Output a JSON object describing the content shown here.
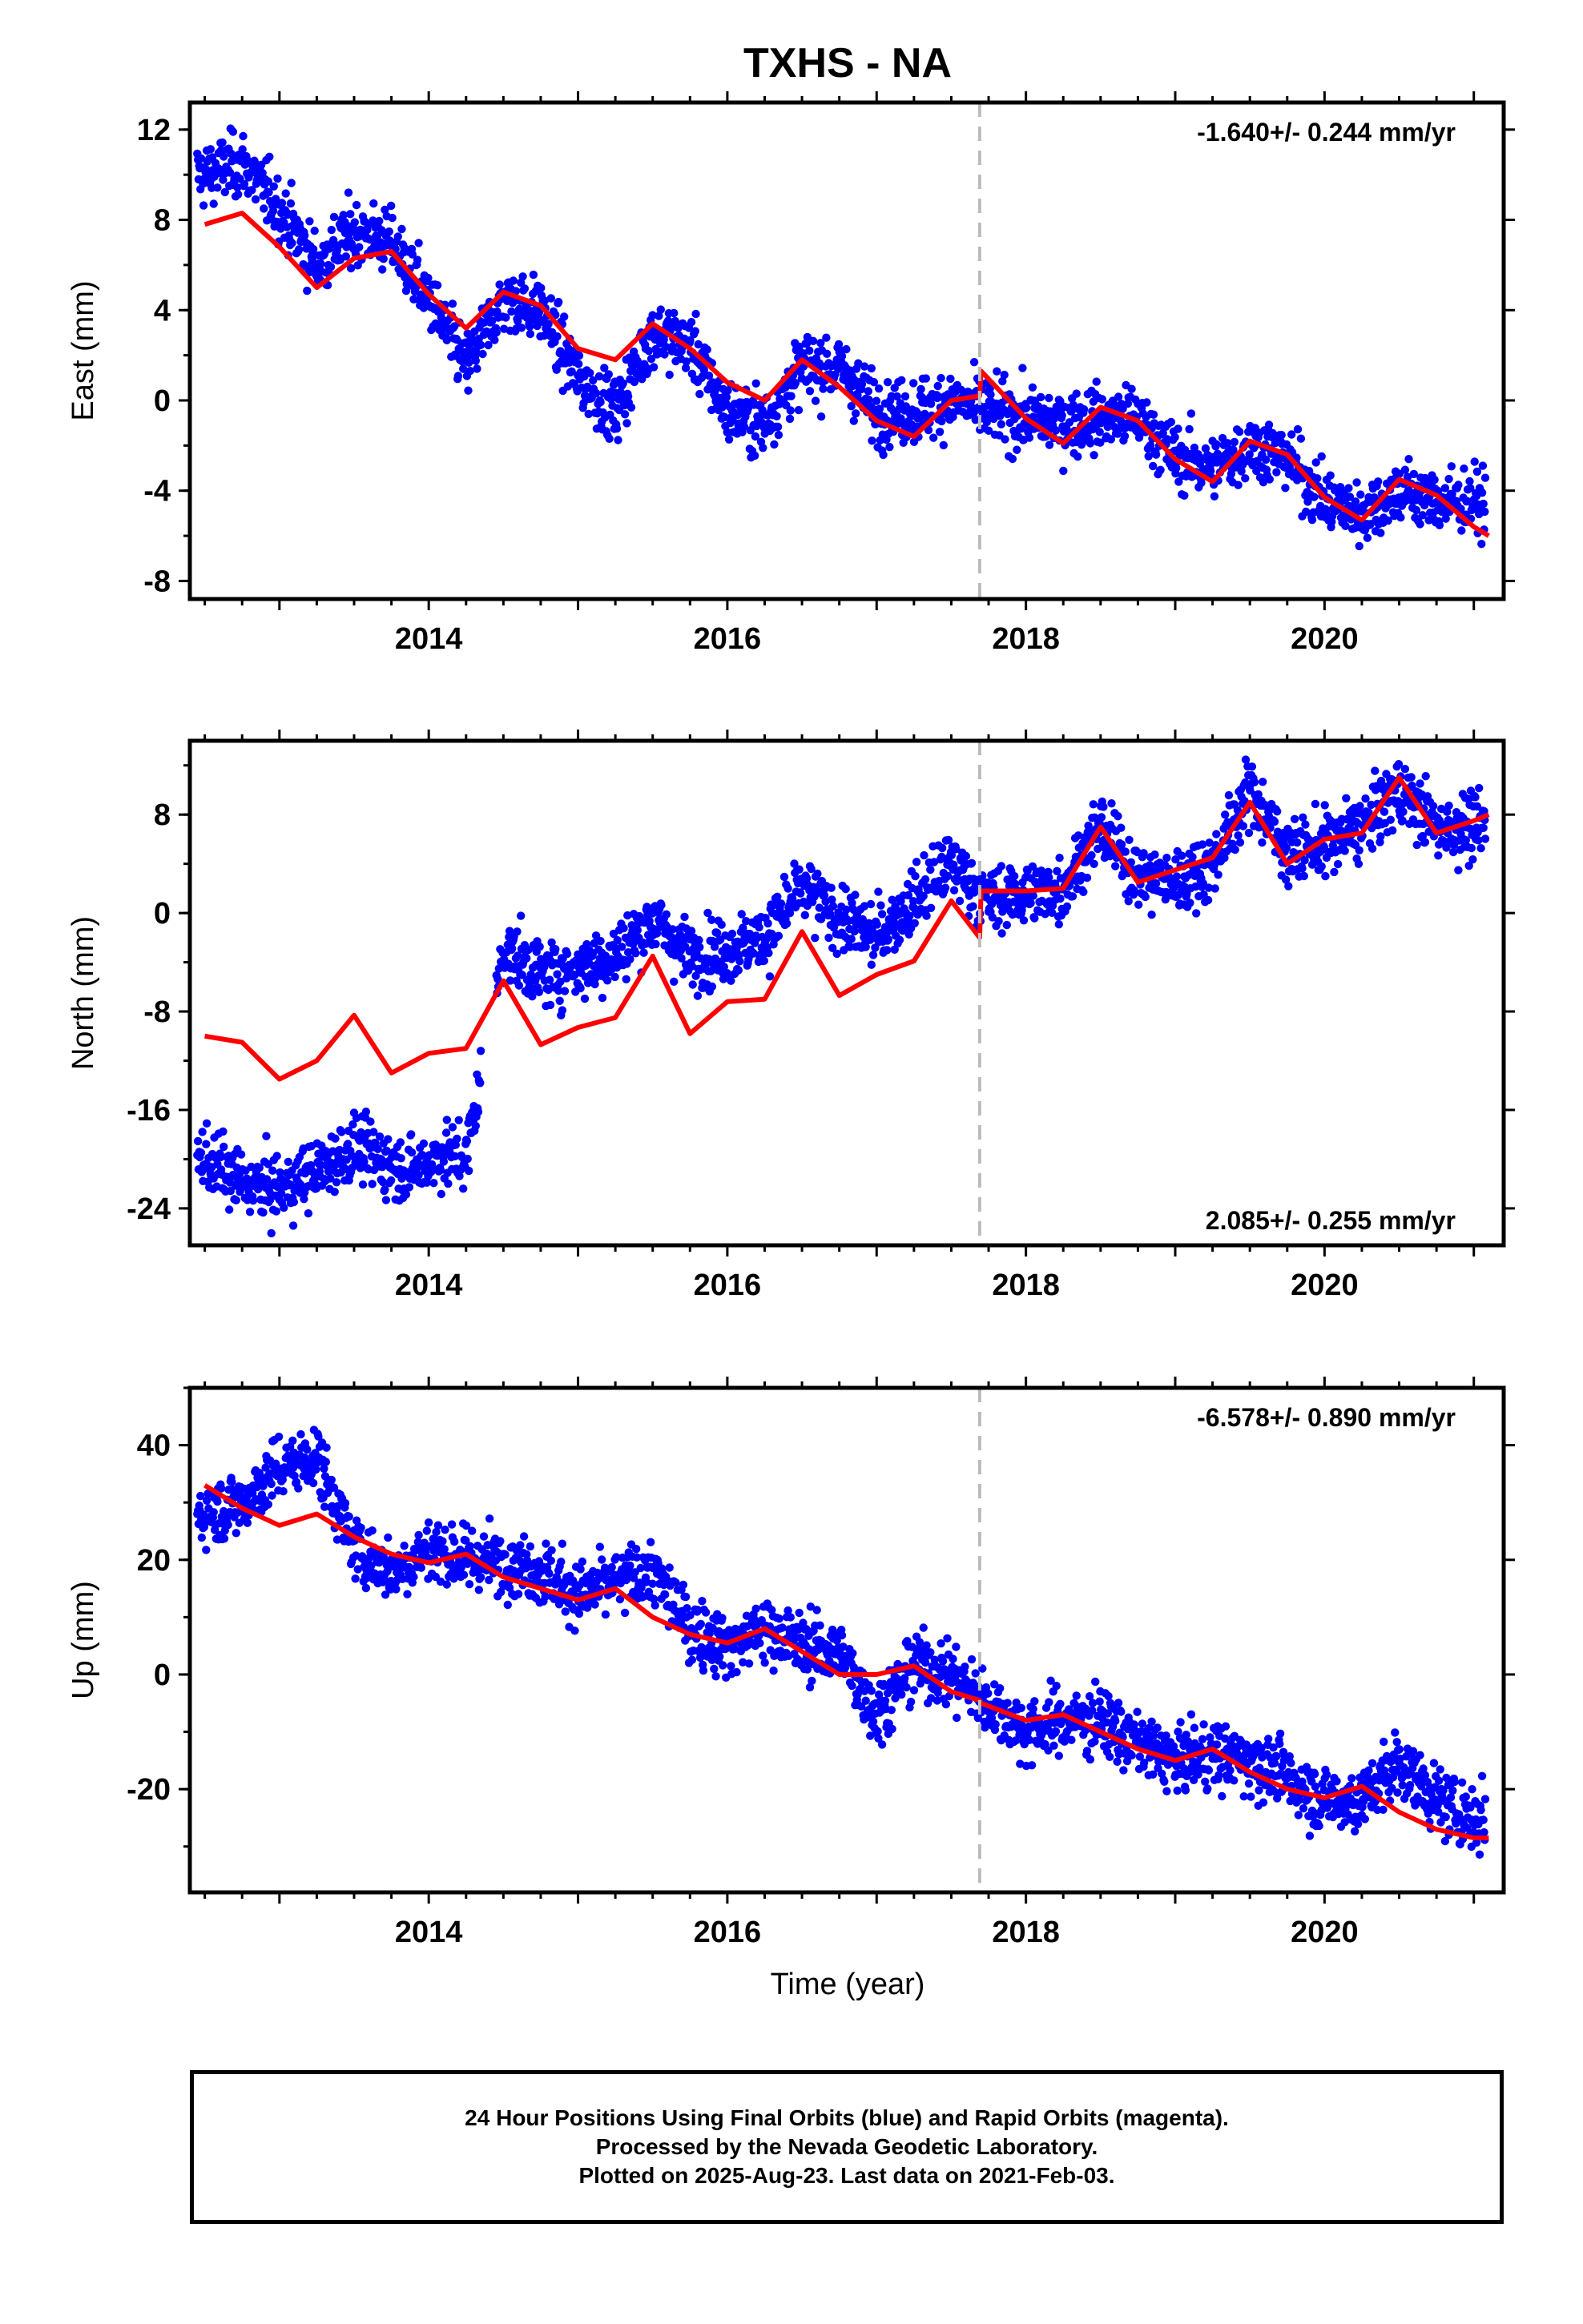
{
  "title": "TXHS - NA",
  "xlabel": "Time (year)",
  "colors": {
    "data": "#0000ff",
    "model": "#ff0000",
    "offset": "#bbbbbb",
    "frame": "#000000"
  },
  "footer": {
    "line1": "24 Hour Positions Using Final Orbits (blue) and Rapid Orbits (magenta).",
    "line2": "Processed by the Nevada Geodetic Laboratory.",
    "line3": "Plotted on 2025-Aug-23. Last data on 2021-Feb-03."
  },
  "chart_data": [
    {
      "type": "scatter",
      "component": "east",
      "title": "TXHS - NA",
      "xlabel": "",
      "ylabel": "East (mm)",
      "velocity_label": "-1.640+/- 0.244 mm/yr",
      "xlim": [
        2012.4,
        2021.2
      ],
      "ylim": [
        -8.8,
        13.2
      ],
      "xticks": [
        2014,
        2016,
        2018,
        2020
      ],
      "yticks": [
        -8,
        -4,
        0,
        4,
        8,
        12
      ],
      "offset_epoch": 2017.69,
      "series": [
        {
          "name": "Final Orbits",
          "color": "#0000ff",
          "x": [
            2012.5,
            2012.75,
            2013.0,
            2013.25,
            2013.5,
            2013.75,
            2014.0,
            2014.25,
            2014.5,
            2014.75,
            2015.0,
            2015.25,
            2015.5,
            2015.75,
            2016.0,
            2016.25,
            2016.5,
            2016.75,
            2017.0,
            2017.25,
            2017.5,
            2017.75,
            2018.0,
            2018.25,
            2018.5,
            2018.75,
            2019.0,
            2019.25,
            2019.5,
            2019.75,
            2020.0,
            2020.25,
            2020.5,
            2020.75,
            2021.0
          ],
          "y": [
            10,
            10.5,
            8.5,
            6,
            7.5,
            7,
            4.5,
            1.5,
            4.5,
            4,
            1,
            -0.5,
            3,
            2.5,
            -0.5,
            -1,
            1.5,
            1.5,
            -0.5,
            -0.5,
            0,
            -0.5,
            -0.8,
            -1,
            -0.8,
            -0.8,
            -2.5,
            -3,
            -2,
            -2.5,
            -4.5,
            -5,
            -4,
            -4.5,
            -4.5
          ]
        },
        {
          "name": "Model",
          "color": "#ff0000",
          "x": [
            2012.5,
            2012.75,
            2013.0,
            2013.25,
            2013.5,
            2013.75,
            2014.0,
            2014.25,
            2014.5,
            2014.75,
            2015.0,
            2015.25,
            2015.5,
            2015.75,
            2016.0,
            2016.25,
            2016.5,
            2016.75,
            2017.0,
            2017.25,
            2017.5,
            2017.69,
            2017.7,
            2018.0,
            2018.25,
            2018.5,
            2018.75,
            2019.0,
            2019.25,
            2019.5,
            2019.75,
            2020.0,
            2020.25,
            2020.5,
            2020.75,
            2021.0,
            2021.1
          ],
          "y": [
            7.8,
            8.3,
            6.8,
            5.0,
            6.3,
            6.6,
            4.7,
            3.2,
            4.8,
            4.2,
            2.3,
            1.8,
            3.4,
            2.3,
            0.8,
            0.0,
            1.8,
            0.6,
            -0.9,
            -1.6,
            0.0,
            0.2,
            1.3,
            -0.8,
            -1.9,
            -0.3,
            -0.9,
            -2.6,
            -3.6,
            -1.8,
            -2.4,
            -4.3,
            -5.3,
            -3.5,
            -4.2,
            -5.6,
            -6.0
          ]
        }
      ]
    },
    {
      "type": "scatter",
      "component": "north",
      "title": "",
      "xlabel": "",
      "ylabel": "North (mm)",
      "velocity_label": "2.085+/- 0.255 mm/yr",
      "xlim": [
        2012.4,
        2021.2
      ],
      "ylim": [
        -27,
        14
      ],
      "xticks": [
        2014,
        2016,
        2018,
        2020
      ],
      "yticks": [
        -24,
        -16,
        -8,
        0,
        8
      ],
      "offset_epoch": 2017.69,
      "series": [
        {
          "name": "Final Orbits",
          "color": "#0000ff",
          "x": [
            2012.5,
            2012.75,
            2013.0,
            2013.25,
            2013.5,
            2013.75,
            2013.9,
            2014.1,
            2014.25,
            2014.5,
            2014.75,
            2015.0,
            2015.25,
            2015.5,
            2015.75,
            2016.0,
            2016.25,
            2016.5,
            2016.75,
            2017.0,
            2017.25,
            2017.5,
            2017.75,
            2018.0,
            2018.25,
            2018.5,
            2018.75,
            2019.0,
            2019.25,
            2019.5,
            2019.75,
            2020.0,
            2020.25,
            2020.5,
            2020.75,
            2021.0
          ],
          "y": [
            -20,
            -22,
            -22.5,
            -21,
            -19,
            -20.5,
            -21,
            -19.5,
            -20,
            -3,
            -5,
            -4.5,
            -3.5,
            -0.5,
            -3.5,
            -3,
            -2,
            2,
            -0.5,
            -2,
            1,
            4,
            1,
            1.5,
            2,
            7,
            3,
            2.5,
            4,
            10,
            5,
            5.5,
            7,
            10,
            7,
            7
          ]
        },
        {
          "name": "Model",
          "color": "#ff0000",
          "x": [
            2012.5,
            2012.75,
            2013.0,
            2013.25,
            2013.5,
            2013.75,
            2014.0,
            2014.25,
            2014.5,
            2014.75,
            2015.0,
            2015.25,
            2015.5,
            2015.75,
            2016.0,
            2016.25,
            2016.5,
            2016.75,
            2017.0,
            2017.25,
            2017.5,
            2017.69,
            2017.7,
            2018.0,
            2018.25,
            2018.5,
            2018.75,
            2019.0,
            2019.25,
            2019.5,
            2019.75,
            2020.0,
            2020.25,
            2020.5,
            2020.75,
            2021.0,
            2021.1
          ],
          "y": [
            -10,
            -10.5,
            -13.5,
            -12.0,
            -8.3,
            -13.0,
            -11.4,
            -11.0,
            -5.5,
            -10.7,
            -9.3,
            -8.5,
            -3.5,
            -9.8,
            -7.2,
            -7.0,
            -1.5,
            -6.7,
            -5.0,
            -3.9,
            1.0,
            -2.0,
            1.8,
            1.8,
            2.0,
            7.0,
            2.5,
            3.5,
            4.5,
            9.0,
            4.0,
            6.0,
            6.5,
            11.0,
            6.5,
            7.5,
            8.0
          ]
        }
      ]
    },
    {
      "type": "scatter",
      "component": "up",
      "title": "",
      "xlabel": "Time (year)",
      "ylabel": "Up (mm)",
      "velocity_label": "-6.578+/- 0.890 mm/yr",
      "xlim": [
        2012.4,
        2021.2
      ],
      "ylim": [
        -38,
        50
      ],
      "xticks": [
        2014,
        2016,
        2018,
        2020
      ],
      "yticks": [
        -20,
        0,
        20,
        40
      ],
      "offset_epoch": 2017.69,
      "series": [
        {
          "name": "Final Orbits",
          "color": "#0000ff",
          "x": [
            2012.5,
            2012.75,
            2013.0,
            2013.25,
            2013.5,
            2013.75,
            2014.0,
            2014.25,
            2014.5,
            2014.75,
            2015.0,
            2015.25,
            2015.5,
            2015.75,
            2016.0,
            2016.25,
            2016.5,
            2016.75,
            2017.0,
            2017.25,
            2017.5,
            2017.75,
            2018.0,
            2018.25,
            2018.5,
            2018.75,
            2019.0,
            2019.25,
            2019.5,
            2019.75,
            2020.0,
            2020.25,
            2020.5,
            2020.75,
            2021.0
          ],
          "y": [
            28,
            30,
            36,
            38,
            22,
            18,
            22,
            20,
            20,
            18,
            14,
            16,
            18,
            8,
            5,
            8,
            5,
            4,
            -7,
            2,
            0,
            -5,
            -10,
            -8,
            -8,
            -12,
            -15,
            -14,
            -15,
            -18,
            -22,
            -22,
            -15,
            -22,
            -25
          ]
        },
        {
          "name": "Model",
          "color": "#ff0000",
          "x": [
            2012.5,
            2012.75,
            2013.0,
            2013.25,
            2013.5,
            2013.75,
            2014.0,
            2014.25,
            2014.5,
            2014.75,
            2015.0,
            2015.25,
            2015.5,
            2015.75,
            2016.0,
            2016.25,
            2016.5,
            2016.75,
            2017.0,
            2017.25,
            2017.5,
            2017.69,
            2017.7,
            2018.0,
            2018.25,
            2018.5,
            2018.75,
            2019.0,
            2019.25,
            2019.5,
            2019.75,
            2020.0,
            2020.25,
            2020.5,
            2020.75,
            2021.0,
            2021.1
          ],
          "y": [
            33,
            29,
            26,
            28,
            24,
            21,
            19.5,
            21,
            17,
            15,
            13,
            15,
            10,
            7,
            5.5,
            8,
            4,
            0,
            0,
            1.5,
            -3,
            -4.5,
            -5,
            -8,
            -7,
            -10,
            -13,
            -15,
            -13,
            -17,
            -20,
            -21.5,
            -19.5,
            -24,
            -27,
            -28.5,
            -28.5
          ]
        }
      ]
    }
  ]
}
